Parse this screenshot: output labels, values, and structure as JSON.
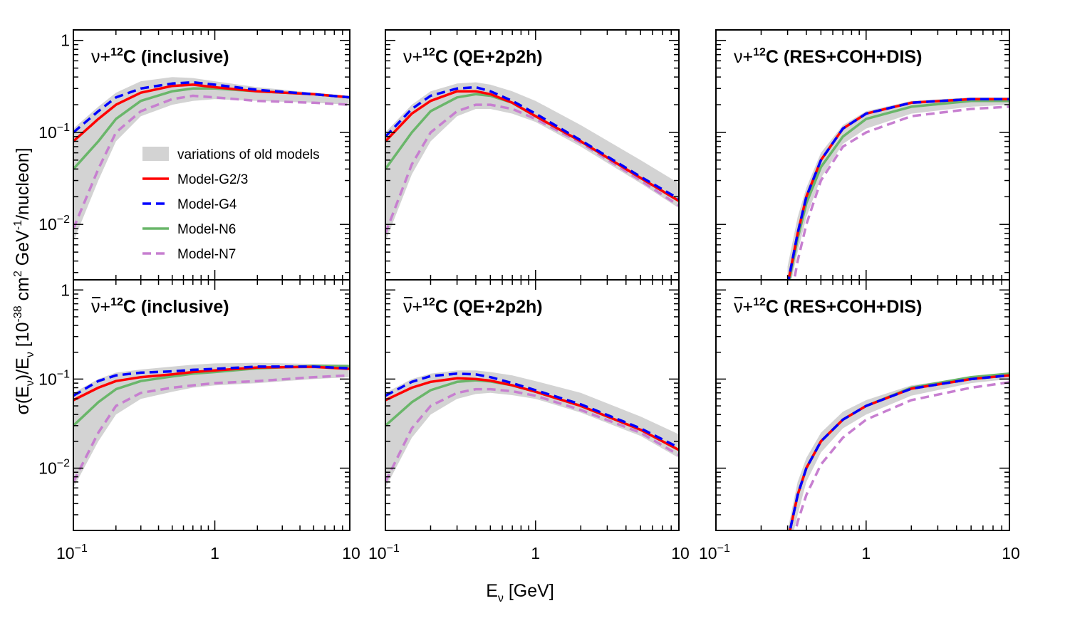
{
  "figure": {
    "xlabel": "E",
    "xlabel_sub": "ν",
    "xlabel_unit": " [GeV]",
    "ylabel_parts": [
      "σ(E",
      "ν",
      ")/E",
      "ν",
      " [10",
      "-38",
      " cm",
      "2",
      " GeV",
      "-1",
      "/nucleon]"
    ]
  },
  "colors": {
    "band": "#d3d3d3",
    "g23": "#ff0000",
    "g4": "#0000ff",
    "n6": "#6ab66a",
    "n7": "#c77fd0",
    "overlap": "#8b5a2b"
  },
  "legend": {
    "items": [
      {
        "key": "band",
        "label": "variations of old models",
        "style": "band"
      },
      {
        "key": "g23",
        "label": "Model-G2/3",
        "style": "solid"
      },
      {
        "key": "g4",
        "label": "Model-G4",
        "style": "dashed"
      },
      {
        "key": "n6",
        "label": "Model-N6",
        "style": "solid"
      },
      {
        "key": "n7",
        "label": "Model-N7",
        "style": "dashed"
      }
    ]
  },
  "chart_data": [
    {
      "type": "line",
      "panel": "nu-inclusive",
      "title_parts": [
        "ν+",
        "12",
        "C (inclusive)"
      ],
      "xscale": "log",
      "yscale": "log",
      "xlim": [
        0.1,
        9
      ],
      "ylim": [
        0.0025,
        1.3
      ],
      "x": [
        0.1,
        0.15,
        0.2,
        0.3,
        0.5,
        0.7,
        1,
        2,
        5,
        9
      ],
      "series": [
        {
          "key": "g23",
          "name": "Model-G2/3",
          "values": [
            0.08,
            0.14,
            0.2,
            0.27,
            0.32,
            0.33,
            0.31,
            0.28,
            0.26,
            0.24
          ]
        },
        {
          "key": "g4",
          "name": "Model-G4",
          "values": [
            0.1,
            0.17,
            0.24,
            0.3,
            0.34,
            0.35,
            0.33,
            0.29,
            0.26,
            0.24
          ]
        },
        {
          "key": "n6",
          "name": "Model-N6",
          "values": [
            0.04,
            0.08,
            0.14,
            0.22,
            0.28,
            0.3,
            0.3,
            0.28,
            0.26,
            0.24
          ]
        },
        {
          "key": "n7",
          "name": "Model-N7",
          "values": [
            0.009,
            0.04,
            0.1,
            0.17,
            0.23,
            0.25,
            0.24,
            0.22,
            0.21,
            0.2
          ]
        }
      ],
      "band": {
        "x": [
          0.1,
          0.15,
          0.2,
          0.3,
          0.5,
          0.7,
          1,
          2,
          5,
          9
        ],
        "lower": [
          0.0065,
          0.03,
          0.08,
          0.15,
          0.2,
          0.22,
          0.23,
          0.22,
          0.21,
          0.2
        ],
        "upper": [
          0.11,
          0.19,
          0.27,
          0.36,
          0.4,
          0.39,
          0.36,
          0.31,
          0.27,
          0.25
        ]
      }
    },
    {
      "type": "line",
      "panel": "nu-qe",
      "title_parts": [
        "ν+",
        "12",
        "C (QE+2p2h)"
      ],
      "xscale": "log",
      "yscale": "log",
      "xlim": [
        0.1,
        9
      ],
      "ylim": [
        0.0025,
        1.3
      ],
      "x": [
        0.1,
        0.15,
        0.2,
        0.3,
        0.4,
        0.5,
        0.7,
        1,
        2,
        5,
        9
      ],
      "series": [
        {
          "key": "g23",
          "name": "Model-G2/3",
          "values": [
            0.08,
            0.16,
            0.22,
            0.28,
            0.28,
            0.26,
            0.21,
            0.15,
            0.08,
            0.032,
            0.018
          ]
        },
        {
          "key": "g4",
          "name": "Model-G4",
          "values": [
            0.09,
            0.18,
            0.25,
            0.3,
            0.31,
            0.28,
            0.22,
            0.16,
            0.082,
            0.033,
            0.019
          ]
        },
        {
          "key": "n6",
          "name": "Model-N6",
          "values": [
            0.04,
            0.1,
            0.17,
            0.24,
            0.26,
            0.25,
            0.21,
            0.15,
            0.08,
            0.032,
            0.018
          ]
        },
        {
          "key": "n7",
          "name": "Model-N7",
          "values": [
            0.008,
            0.045,
            0.1,
            0.17,
            0.2,
            0.2,
            0.18,
            0.14,
            0.077,
            0.03,
            0.016
          ]
        }
      ],
      "band": {
        "x": [
          0.1,
          0.15,
          0.2,
          0.3,
          0.4,
          0.5,
          0.7,
          1,
          2,
          5,
          9
        ],
        "lower": [
          0.0065,
          0.035,
          0.08,
          0.15,
          0.18,
          0.18,
          0.16,
          0.13,
          0.07,
          0.028,
          0.015
        ],
        "upper": [
          0.1,
          0.2,
          0.28,
          0.34,
          0.35,
          0.33,
          0.28,
          0.22,
          0.12,
          0.05,
          0.028
        ]
      }
    },
    {
      "type": "line",
      "panel": "nu-res",
      "title_parts": [
        "ν+",
        "12",
        "C (RES+COH+DIS)"
      ],
      "xscale": "log",
      "yscale": "log",
      "xlim": [
        0.1,
        9
      ],
      "ylim": [
        0.0025,
        1.3
      ],
      "x": [
        0.3,
        0.35,
        0.4,
        0.5,
        0.7,
        1,
        2,
        5,
        9
      ],
      "series": [
        {
          "key": "g23",
          "name": "Model-G2/3",
          "values": [
            0.0022,
            0.008,
            0.02,
            0.05,
            0.11,
            0.16,
            0.21,
            0.23,
            0.23
          ]
        },
        {
          "key": "g4",
          "name": "Model-G4",
          "values": [
            0.0022,
            0.008,
            0.02,
            0.05,
            0.11,
            0.16,
            0.21,
            0.23,
            0.23
          ]
        },
        {
          "key": "n6",
          "name": "Model-N6",
          "values": [
            0.002,
            0.007,
            0.017,
            0.042,
            0.09,
            0.14,
            0.19,
            0.22,
            0.22
          ]
        },
        {
          "key": "n7",
          "name": "Model-N7",
          "values": [
            0.001,
            0.004,
            0.01,
            0.03,
            0.07,
            0.1,
            0.15,
            0.18,
            0.19
          ]
        }
      ],
      "band": {
        "x": [
          0.3,
          0.35,
          0.4,
          0.5,
          0.7,
          1,
          2,
          5,
          9
        ],
        "lower": [
          0.0016,
          0.005,
          0.012,
          0.032,
          0.075,
          0.11,
          0.16,
          0.19,
          0.2
        ],
        "upper": [
          0.0035,
          0.012,
          0.025,
          0.06,
          0.12,
          0.17,
          0.22,
          0.24,
          0.24
        ]
      }
    },
    {
      "type": "line",
      "panel": "nubar-inclusive",
      "title_parts": [
        "ν+",
        "12",
        "C (inclusive)"
      ],
      "title_bar": true,
      "xscale": "log",
      "yscale": "log",
      "xlim": [
        0.1,
        9
      ],
      "ylim": [
        0.002,
        1.3
      ],
      "x": [
        0.1,
        0.15,
        0.2,
        0.3,
        0.5,
        0.7,
        1,
        2,
        5,
        9
      ],
      "series": [
        {
          "key": "g23",
          "name": "Model-G2/3",
          "values": [
            0.058,
            0.08,
            0.095,
            0.105,
            0.113,
            0.12,
            0.125,
            0.135,
            0.137,
            0.13
          ]
        },
        {
          "key": "g4",
          "name": "Model-G4",
          "values": [
            0.065,
            0.095,
            0.11,
            0.118,
            0.122,
            0.127,
            0.13,
            0.138,
            0.138,
            0.132
          ]
        },
        {
          "key": "n6",
          "name": "Model-N6",
          "values": [
            0.03,
            0.055,
            0.077,
            0.095,
            0.107,
            0.115,
            0.12,
            0.132,
            0.14,
            0.14
          ]
        },
        {
          "key": "n7",
          "name": "Model-N7",
          "values": [
            0.007,
            0.025,
            0.05,
            0.07,
            0.08,
            0.085,
            0.09,
            0.095,
            0.105,
            0.11
          ]
        }
      ],
      "band": {
        "x": [
          0.1,
          0.15,
          0.2,
          0.3,
          0.5,
          0.7,
          1,
          2,
          5,
          9
        ],
        "lower": [
          0.006,
          0.02,
          0.04,
          0.06,
          0.072,
          0.08,
          0.085,
          0.09,
          0.1,
          0.105
        ],
        "upper": [
          0.07,
          0.1,
          0.118,
          0.128,
          0.138,
          0.145,
          0.15,
          0.152,
          0.148,
          0.145
        ]
      }
    },
    {
      "type": "line",
      "panel": "nubar-qe",
      "title_parts": [
        "ν+",
        "12",
        "C (QE+2p2h)"
      ],
      "title_bar": true,
      "xscale": "log",
      "yscale": "log",
      "xlim": [
        0.1,
        9
      ],
      "ylim": [
        0.002,
        1.3
      ],
      "x": [
        0.1,
        0.15,
        0.2,
        0.3,
        0.4,
        0.5,
        0.7,
        1,
        2,
        5,
        9
      ],
      "series": [
        {
          "key": "g23",
          "name": "Model-G2/3",
          "values": [
            0.058,
            0.08,
            0.093,
            0.102,
            0.1,
            0.096,
            0.085,
            0.072,
            0.05,
            0.027,
            0.016
          ]
        },
        {
          "key": "g4",
          "name": "Model-G4",
          "values": [
            0.065,
            0.093,
            0.108,
            0.115,
            0.113,
            0.105,
            0.09,
            0.075,
            0.052,
            0.028,
            0.017
          ]
        },
        {
          "key": "n6",
          "name": "Model-N6",
          "values": [
            0.03,
            0.055,
            0.075,
            0.093,
            0.097,
            0.094,
            0.085,
            0.072,
            0.05,
            0.027,
            0.016
          ]
        },
        {
          "key": "n7",
          "name": "Model-N7",
          "values": [
            0.007,
            0.028,
            0.05,
            0.07,
            0.077,
            0.077,
            0.073,
            0.065,
            0.045,
            0.025,
            0.014
          ]
        }
      ],
      "band": {
        "x": [
          0.1,
          0.15,
          0.2,
          0.3,
          0.4,
          0.5,
          0.7,
          1,
          2,
          5,
          9
        ],
        "lower": [
          0.006,
          0.022,
          0.04,
          0.06,
          0.068,
          0.07,
          0.066,
          0.06,
          0.042,
          0.023,
          0.013
        ],
        "upper": [
          0.07,
          0.1,
          0.115,
          0.125,
          0.125,
          0.12,
          0.11,
          0.095,
          0.07,
          0.038,
          0.024
        ]
      }
    },
    {
      "type": "line",
      "panel": "nubar-res",
      "title_parts": [
        "ν+",
        "12",
        "C (RES+COH+DIS)"
      ],
      "title_bar": true,
      "xscale": "log",
      "yscale": "log",
      "xlim": [
        0.1,
        9
      ],
      "ylim": [
        0.002,
        1.3
      ],
      "x": [
        0.3,
        0.35,
        0.4,
        0.5,
        0.7,
        1,
        2,
        5,
        9
      ],
      "series": [
        {
          "key": "g23",
          "name": "Model-G2/3",
          "values": [
            0.0015,
            0.005,
            0.01,
            0.02,
            0.035,
            0.05,
            0.078,
            0.1,
            0.11
          ]
        },
        {
          "key": "g4",
          "name": "Model-G4",
          "values": [
            0.0015,
            0.005,
            0.01,
            0.02,
            0.035,
            0.05,
            0.078,
            0.1,
            0.11
          ]
        },
        {
          "key": "n6",
          "name": "Model-N6",
          "values": [
            0.0015,
            0.005,
            0.01,
            0.02,
            0.035,
            0.05,
            0.08,
            0.105,
            0.115
          ]
        },
        {
          "key": "n7",
          "name": "Model-N7",
          "values": [
            0.0008,
            0.0025,
            0.005,
            0.011,
            0.022,
            0.035,
            0.058,
            0.08,
            0.092
          ]
        }
      ],
      "band": {
        "x": [
          0.3,
          0.35,
          0.4,
          0.5,
          0.7,
          1,
          2,
          5,
          9
        ],
        "lower": [
          0.001,
          0.003,
          0.007,
          0.015,
          0.028,
          0.04,
          0.065,
          0.09,
          0.1
        ],
        "upper": [
          0.002,
          0.007,
          0.013,
          0.025,
          0.043,
          0.058,
          0.085,
          0.105,
          0.115
        ]
      }
    }
  ]
}
